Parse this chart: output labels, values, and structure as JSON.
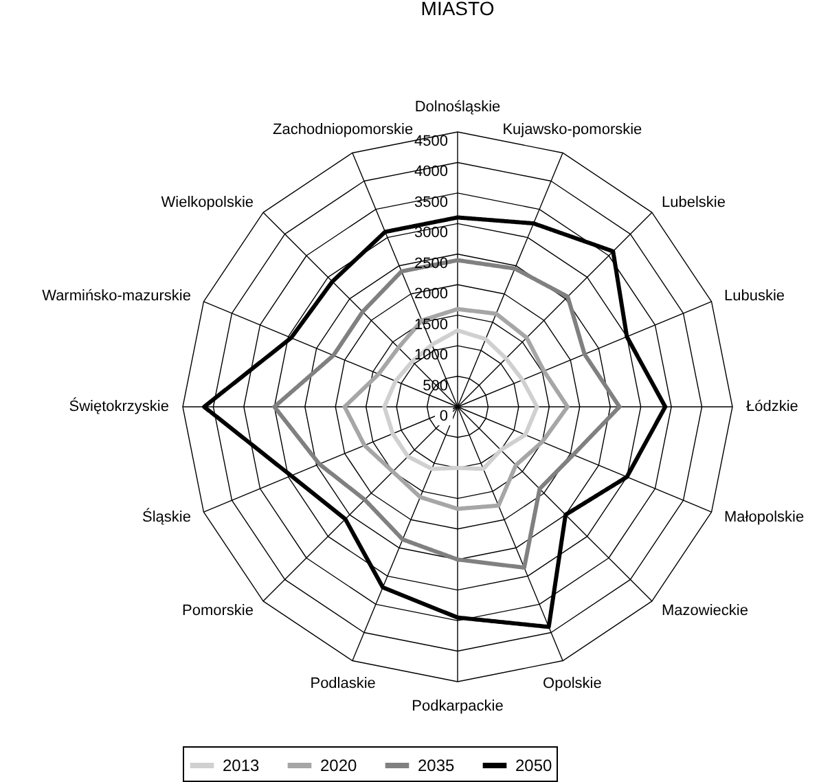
{
  "chart_data": {
    "type": "radar",
    "title": "MIASTO",
    "categories": [
      "Dolnośląskie",
      "Kujawsko-pomorskie",
      "Lubelskie",
      "Lubuskie",
      "Łódzkie",
      "Małopolskie",
      "Mazowieckie",
      "Opolskie",
      "Podkarpackie",
      "Podlaskie",
      "Pomorskie",
      "Śląskie",
      "Świętokrzyskie",
      "Warmińsko-mazurskie",
      "Wielkopolskie",
      "Zachodniopomorskie"
    ],
    "series": [
      {
        "name": "2013",
        "color": "#d0d0d0",
        "values": [
          1250,
          1200,
          1120,
          1150,
          1300,
          1200,
          1000,
          1100,
          1000,
          1100,
          1150,
          1150,
          1200,
          1100,
          1050,
          1100
        ]
      },
      {
        "name": "2020",
        "color": "#a6a6a6",
        "values": [
          1600,
          1650,
          1600,
          1530,
          1800,
          1500,
          1350,
          1750,
          1670,
          1600,
          1500,
          1650,
          1850,
          1400,
          1370,
          1530
        ]
      },
      {
        "name": "2035",
        "color": "#808080",
        "values": [
          2400,
          2450,
          2550,
          2250,
          2650,
          2050,
          1900,
          2850,
          2500,
          2350,
          2150,
          2450,
          3000,
          2200,
          2200,
          2400
        ]
      },
      {
        "name": "2050",
        "color": "#000000",
        "values": [
          3100,
          3250,
          3600,
          3000,
          3400,
          3000,
          2500,
          3900,
          3450,
          3200,
          2600,
          2950,
          4150,
          2950,
          2900,
          3100
        ]
      }
    ],
    "ylim": [
      0,
      4500
    ],
    "yticks": [
      0,
      500,
      1000,
      1500,
      2000,
      2500,
      3000,
      3500,
      4000,
      4500
    ],
    "grid": true,
    "legend": "bottom"
  }
}
